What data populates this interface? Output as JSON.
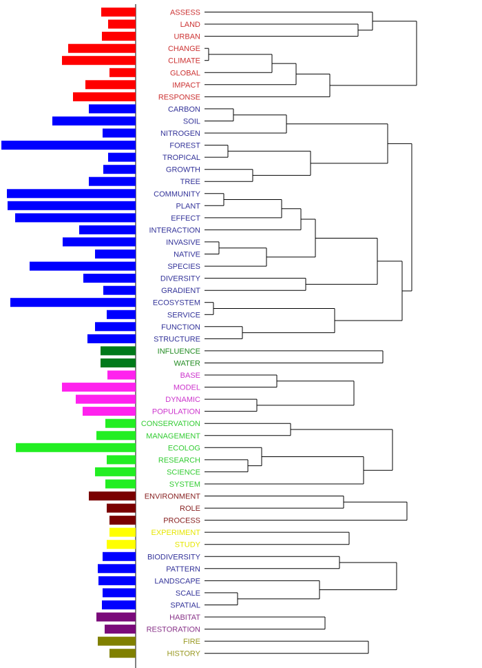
{
  "chart_data": {
    "type": "dendrogram",
    "terms": [
      {
        "label": "ASSESS",
        "value": 50,
        "color": "#ff0000",
        "label_color": "#cc3333"
      },
      {
        "label": "LAND",
        "value": 40,
        "color": "#ff0000",
        "label_color": "#cc3333"
      },
      {
        "label": "URBAN",
        "value": 49,
        "color": "#ff0000",
        "label_color": "#cc3333"
      },
      {
        "label": "CHANGE",
        "value": 98,
        "color": "#ff0000",
        "label_color": "#cc3333"
      },
      {
        "label": "CLIMATE",
        "value": 107,
        "color": "#ff0000",
        "label_color": "#cc3333"
      },
      {
        "label": "GLOBAL",
        "value": 38,
        "color": "#ff0000",
        "label_color": "#cc3333"
      },
      {
        "label": "IMPACT",
        "value": 73,
        "color": "#ff0000",
        "label_color": "#cc3333"
      },
      {
        "label": "RESPONSE",
        "value": 91,
        "color": "#ff0000",
        "label_color": "#cc3333"
      },
      {
        "label": "CARBON",
        "value": 68,
        "color": "#0000ff",
        "label_color": "#333399"
      },
      {
        "label": "SOIL",
        "value": 121,
        "color": "#0000ff",
        "label_color": "#333399"
      },
      {
        "label": "NITROGEN",
        "value": 48,
        "color": "#0000ff",
        "label_color": "#333399"
      },
      {
        "label": "FOREST",
        "value": 195,
        "color": "#0000ff",
        "label_color": "#333399"
      },
      {
        "label": "TROPICAL",
        "value": 40,
        "color": "#0000ff",
        "label_color": "#333399"
      },
      {
        "label": "GROWTH",
        "value": 47,
        "color": "#0000ff",
        "label_color": "#333399"
      },
      {
        "label": "TREE",
        "value": 68,
        "color": "#0000ff",
        "label_color": "#333399"
      },
      {
        "label": "COMMUNITY",
        "value": 187,
        "color": "#0000ff",
        "label_color": "#333399"
      },
      {
        "label": "PLANT",
        "value": 186,
        "color": "#0000ff",
        "label_color": "#333399"
      },
      {
        "label": "EFFECT",
        "value": 175,
        "color": "#0000ff",
        "label_color": "#333399"
      },
      {
        "label": "INTERACTION",
        "value": 82,
        "color": "#0000ff",
        "label_color": "#333399"
      },
      {
        "label": "INVASIVE",
        "value": 106,
        "color": "#0000ff",
        "label_color": "#333399"
      },
      {
        "label": "NATIVE",
        "value": 59,
        "color": "#0000ff",
        "label_color": "#333399"
      },
      {
        "label": "SPECIES",
        "value": 154,
        "color": "#0000ff",
        "label_color": "#333399"
      },
      {
        "label": "DIVERSITY",
        "value": 76,
        "color": "#0000ff",
        "label_color": "#333399"
      },
      {
        "label": "GRADIENT",
        "value": 47,
        "color": "#0000ff",
        "label_color": "#333399"
      },
      {
        "label": "ECOSYSTEM",
        "value": 182,
        "color": "#0000ff",
        "label_color": "#333399"
      },
      {
        "label": "SERVICE",
        "value": 42,
        "color": "#0000ff",
        "label_color": "#333399"
      },
      {
        "label": "FUNCTION",
        "value": 59,
        "color": "#0000ff",
        "label_color": "#333399"
      },
      {
        "label": "STRUCTURE",
        "value": 70,
        "color": "#0000ff",
        "label_color": "#333399"
      },
      {
        "label": "INFLUENCE",
        "value": 51,
        "color": "#007a1a",
        "label_color": "#228b22"
      },
      {
        "label": "WATER",
        "value": 51,
        "color": "#007a1a",
        "label_color": "#228b22"
      },
      {
        "label": "BASE",
        "value": 41,
        "color": "#ff22ee",
        "label_color": "#cc33cc"
      },
      {
        "label": "MODEL",
        "value": 107,
        "color": "#ff22ee",
        "label_color": "#cc33cc"
      },
      {
        "label": "DYNAMIC",
        "value": 87,
        "color": "#ff22ee",
        "label_color": "#cc33cc"
      },
      {
        "label": "POPULATION",
        "value": 77,
        "color": "#ff22ee",
        "label_color": "#cc33cc"
      },
      {
        "label": "CONSERVATION",
        "value": 44,
        "color": "#22ee22",
        "label_color": "#33cc33"
      },
      {
        "label": "MANAGEMENT",
        "value": 57,
        "color": "#22ee22",
        "label_color": "#33cc33"
      },
      {
        "label": "ECOLOG",
        "value": 174,
        "color": "#22ee22",
        "label_color": "#33cc33"
      },
      {
        "label": "RESEARCH",
        "value": 42,
        "color": "#22ee22",
        "label_color": "#33cc33"
      },
      {
        "label": "SCIENCE",
        "value": 59,
        "color": "#22ee22",
        "label_color": "#33cc33"
      },
      {
        "label": "SYSTEM",
        "value": 44,
        "color": "#22ee22",
        "label_color": "#33cc33"
      },
      {
        "label": "ENVIRONMENT",
        "value": 68,
        "color": "#7a0000",
        "label_color": "#882222"
      },
      {
        "label": "ROLE",
        "value": 42,
        "color": "#7a0000",
        "label_color": "#882222"
      },
      {
        "label": "PROCESS",
        "value": 38,
        "color": "#7a0000",
        "label_color": "#882222"
      },
      {
        "label": "EXPERIMENT",
        "value": 38,
        "color": "#ffff00",
        "label_color": "#e6e600"
      },
      {
        "label": "STUDY",
        "value": 42,
        "color": "#ffff00",
        "label_color": "#e6e600"
      },
      {
        "label": "BIODIVERSITY",
        "value": 48,
        "color": "#0000ff",
        "label_color": "#333399"
      },
      {
        "label": "PATTERN",
        "value": 55,
        "color": "#0000ff",
        "label_color": "#333399"
      },
      {
        "label": "LANDSCAPE",
        "value": 54,
        "color": "#0000ff",
        "label_color": "#333399"
      },
      {
        "label": "SCALE",
        "value": 48,
        "color": "#0000ff",
        "label_color": "#333399"
      },
      {
        "label": "SPATIAL",
        "value": 49,
        "color": "#0000ff",
        "label_color": "#333399"
      },
      {
        "label": "HABITAT",
        "value": 57,
        "color": "#7a0a7a",
        "label_color": "#883388"
      },
      {
        "label": "RESTORATION",
        "value": 45,
        "color": "#7a0a7a",
        "label_color": "#883388"
      },
      {
        "label": "FIRE",
        "value": 55,
        "color": "#808000",
        "label_color": "#999922"
      },
      {
        "label": "HISTORY",
        "value": 38,
        "color": "#808000",
        "label_color": "#999922"
      }
    ],
    "merges": [
      {
        "a": "CHANGE",
        "b": "CLIMATE",
        "height": 303
      },
      {
        "a": "INVASIVE",
        "b": "NATIVE",
        "height": 318
      },
      {
        "a": "ECOSYSTEM",
        "b": "SERVICE",
        "height": 310
      },
      {
        "a": "COMMUNITY",
        "b": "PLANT",
        "height": 325
      },
      {
        "a": "FOREST",
        "b": "TROPICAL",
        "height": 331
      },
      {
        "a": "CARBON",
        "b": "SOIL",
        "height": 339
      },
      {
        "a": "SCALE",
        "b": "SPATIAL",
        "height": 345
      },
      {
        "a": "FUNCTION",
        "b": "STRUCTURE",
        "height": 352
      },
      {
        "a": "RESEARCH",
        "b": "SCIENCE",
        "height": 360
      },
      {
        "a": "DYNAMIC",
        "b": "POPULATION",
        "height": 373
      },
      {
        "a": "GROWTH",
        "b": "TREE",
        "height": 367
      },
      {
        "a": "ECOLOG",
        "b": "RESEARCH+SCIENCE",
        "height": 380
      },
      {
        "a": "CHANGE+CLIMATE",
        "b": "GLOBAL",
        "height": 395
      },
      {
        "a": "INVASIVE+NATIVE",
        "b": "SPECIES",
        "height": 387
      },
      {
        "a": "BASE",
        "b": "MODEL",
        "height": 402
      },
      {
        "a": "COMMUNITY+PLANT",
        "b": "EFFECT",
        "height": 409
      },
      {
        "a": "CARBON+SOIL",
        "b": "NITROGEN",
        "height": 416
      },
      {
        "a": "CONSERVATION",
        "b": "MANAGEMENT",
        "height": 422
      },
      {
        "a": "COMMUNITY+PLANT+EFFECT",
        "b": "INTERACTION",
        "height": 437
      },
      {
        "a": "CHANGE+CLIMATE+GLOBAL",
        "b": "IMPACT",
        "height": 430
      },
      {
        "a": "DIVERSITY",
        "b": "GRADIENT",
        "height": 444
      },
      {
        "a": "FOREST+TROPICAL",
        "b": "GROWTH+TREE",
        "height": 451
      },
      {
        "a": "COMMUNITY..INTERACTION",
        "b": "INVASIVE..SPECIES",
        "height": 458
      },
      {
        "a": "SCALE+SPATIAL",
        "b": "LANDSCAPE",
        "height": 464
      },
      {
        "a": "HABITAT",
        "b": "RESTORATION",
        "height": 472
      },
      {
        "a": "CHANGE..IMPACT",
        "b": "RESPONSE",
        "height": 479
      },
      {
        "a": "ECOSYSTEM+SERVICE",
        "b": "FUNCTION+STRUCTURE",
        "height": 486
      },
      {
        "a": "BIODIVERSITY",
        "b": "PATTERN",
        "height": 493
      },
      {
        "a": "ENVIRONMENT",
        "b": "ROLE",
        "height": 499
      },
      {
        "a": "EXPERIMENT",
        "b": "STUDY",
        "height": 507
      },
      {
        "a": "BASE+MODEL",
        "b": "DYNAMIC+POPULATION",
        "height": 514
      },
      {
        "a": "LAND",
        "b": "URBAN",
        "height": 520
      },
      {
        "a": "ECOLOG..SCIENCE",
        "b": "SYSTEM",
        "height": 528
      },
      {
        "a": "FIRE",
        "b": "HISTORY",
        "height": 535
      },
      {
        "a": "ASSESS",
        "b": "LAND+URBAN",
        "height": 541
      },
      {
        "a": "COMMUNITY..SPECIES",
        "b": "DIVERSITY+GRADIENT",
        "height": 548
      },
      {
        "a": "INFLUENCE",
        "b": "WATER",
        "height": 556
      },
      {
        "a": "CARBON..NITROGEN",
        "b": "FOREST..TREE",
        "height": 563
      },
      {
        "a": "CONSERVATION+MANAGEMENT",
        "b": "ECOLOG..SYSTEM",
        "height": 570
      },
      {
        "a": "BIODIVERSITY+PATTERN",
        "b": "LANDSCAPE..SPATIAL",
        "height": 576
      },
      {
        "a": "COMMUNITY..GRADIENT",
        "b": "ECOSYSTEM..STRUCTURE",
        "height": 584
      },
      {
        "a": "ENVIRONMENT+ROLE",
        "b": "PROCESS",
        "height": 591
      },
      {
        "a": "CARBON..TREE",
        "b": "COMMUNITY..STRUCTURE",
        "height": 598
      },
      {
        "a": "ASSESS..URBAN",
        "b": "CHANGE..RESPONSE",
        "height": 605
      }
    ]
  }
}
